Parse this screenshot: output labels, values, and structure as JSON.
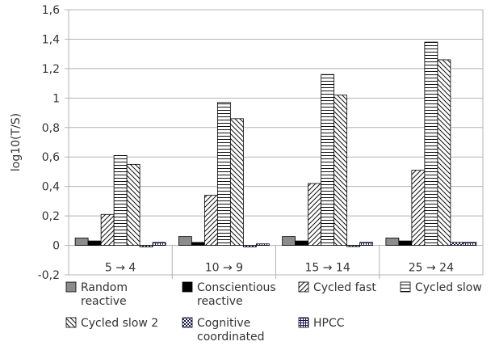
{
  "chart_data": {
    "type": "bar",
    "ylabel": "log10(T/S)",
    "ylim": [
      -0.2,
      1.6
    ],
    "ytick_step": 0.2,
    "grid": true,
    "legend_position": "bottom",
    "categories": [
      "5 → 4",
      "10 → 9",
      "15 → 14",
      "25 → 24"
    ],
    "series": [
      {
        "name": "Random reactive",
        "legend_lines": [
          "Random",
          "reactive"
        ],
        "pattern": "solid-gray",
        "values": [
          0.05,
          0.06,
          0.06,
          0.05
        ]
      },
      {
        "name": "Conscientious reactive",
        "legend_lines": [
          "Conscientious",
          "reactive"
        ],
        "pattern": "solid-black",
        "values": [
          0.03,
          0.02,
          0.03,
          0.03
        ]
      },
      {
        "name": "Cycled fast",
        "legend_lines": [
          "Cycled fast"
        ],
        "pattern": "diagonal-up",
        "values": [
          0.21,
          0.34,
          0.42,
          0.51
        ]
      },
      {
        "name": "Cycled slow",
        "legend_lines": [
          "Cycled slow"
        ],
        "pattern": "horizontal",
        "values": [
          0.61,
          0.97,
          1.16,
          1.38
        ]
      },
      {
        "name": "Cycled slow 2",
        "legend_lines": [
          "Cycled slow 2"
        ],
        "pattern": "diagonal-down",
        "values": [
          0.55,
          0.86,
          1.02,
          1.26
        ]
      },
      {
        "name": "Cognitive coordinated",
        "legend_lines": [
          "Cognitive",
          "coordinated"
        ],
        "pattern": "checker",
        "values": [
          -0.01,
          -0.01,
          0.0,
          0.02
        ]
      },
      {
        "name": "HPCC",
        "legend_lines": [
          "HPCC"
        ],
        "pattern": "grid",
        "values": [
          0.02,
          0.01,
          0.02,
          0.02
        ]
      }
    ]
  }
}
